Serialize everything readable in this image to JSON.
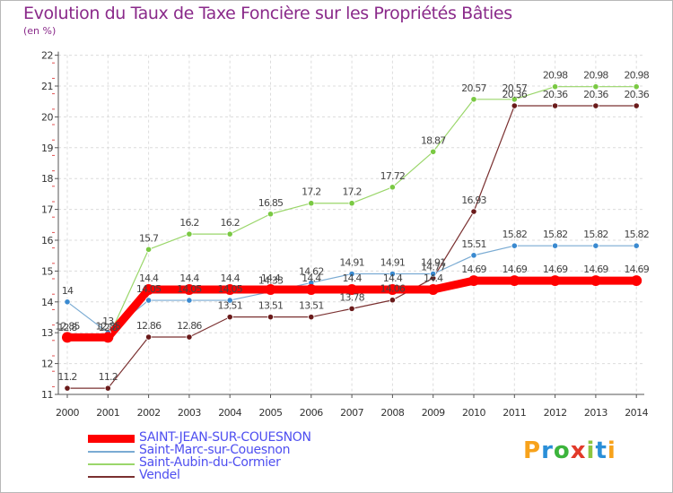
{
  "header": {
    "title": "Evolution du Taux de Taxe Foncière sur les Propriétés Bâties",
    "unit": "(en %)"
  },
  "brand": {
    "logo_letters": [
      "P",
      "r",
      "o",
      "x",
      "i",
      "t",
      "i"
    ],
    "logo_colors": [
      "#f7a21b",
      "#2a8fd8",
      "#3cb43c",
      "#e23a2a",
      "#8bc540",
      "#2a8fd8",
      "#f7a21b"
    ]
  },
  "chart_data": {
    "type": "line",
    "title": "Evolution du Taux de Taxe Foncière sur les Propriétés Bâties",
    "ylabel": "(en %)",
    "xlabel": "",
    "ylim": [
      11,
      22
    ],
    "yticks": [
      "11",
      "12",
      "13",
      "14",
      "15",
      "16",
      "17",
      "18",
      "19",
      "20",
      "21",
      "22"
    ],
    "categories": [
      "2000",
      "2001",
      "2002",
      "2003",
      "2004",
      "2005",
      "2006",
      "2007",
      "2008",
      "2009",
      "2010",
      "2011",
      "2012",
      "2013",
      "2014"
    ],
    "grid": true,
    "legend_position": "bottom-left",
    "series": [
      {
        "name": "SAINT-JEAN-SUR-COUESNON",
        "color": "#ff0000",
        "width": 9,
        "dot_fill": "#ff0000",
        "values": [
          12.85,
          12.85,
          14.4,
          14.4,
          14.4,
          14.4,
          14.4,
          14.4,
          14.4,
          14.4,
          14.69,
          14.69,
          14.69,
          14.69,
          14.69
        ],
        "labels": [
          "12.85",
          "12.85",
          "14.4",
          "14.4",
          "14.4",
          "14.4",
          "14.4",
          "14.4",
          "14.4",
          "14.4",
          "14.69",
          "14.69",
          "14.69",
          "14.69",
          "14.69"
        ]
      },
      {
        "name": "Saint-Marc-sur-Couesnon",
        "color": "#7aabd3",
        "width": 1.2,
        "dot_fill": "#3a8ad0",
        "values": [
          14,
          13,
          14.05,
          14.05,
          14.05,
          14.33,
          14.62,
          14.91,
          14.91,
          14.91,
          15.51,
          15.82,
          15.82,
          15.82,
          15.82
        ],
        "labels": [
          "14",
          "13",
          "14.05",
          "14.05",
          "14.05",
          "14.33",
          "14.62",
          "14.91",
          "14.91",
          "14.91",
          "15.51",
          "15.82",
          "15.82",
          "15.82",
          "15.82"
        ]
      },
      {
        "name": "Saint-Aubin-du-Cormier",
        "color": "#9ad66a",
        "width": 1.2,
        "dot_fill": "#7ac943",
        "values": [
          12.8,
          12.8,
          15.7,
          16.2,
          16.2,
          16.85,
          17.2,
          17.2,
          17.72,
          18.87,
          20.57,
          20.57,
          20.98,
          20.98,
          20.98
        ],
        "labels": [
          "12.8",
          "12.8",
          "15.7",
          "16.2",
          "16.2",
          "16.85",
          "17.2",
          "17.2",
          "17.72",
          "18.87",
          "20.57",
          "20.57",
          "20.98",
          "20.98",
          "20.98"
        ]
      },
      {
        "name": "Vendel",
        "color": "#7a3030",
        "width": 1.2,
        "dot_fill": "#6a1a1a",
        "values": [
          11.2,
          11.2,
          12.86,
          12.86,
          13.51,
          13.51,
          13.51,
          13.78,
          14.06,
          14.77,
          16.93,
          20.36,
          20.36,
          20.36,
          20.36
        ],
        "labels": [
          "11.2",
          "11.2",
          "12.86",
          "12.86",
          "13.51",
          "13.51",
          "13.51",
          "13.78",
          "14.06",
          "14.77",
          "16.93",
          "20.36",
          "20.36",
          "20.36",
          "20.36"
        ]
      }
    ]
  }
}
